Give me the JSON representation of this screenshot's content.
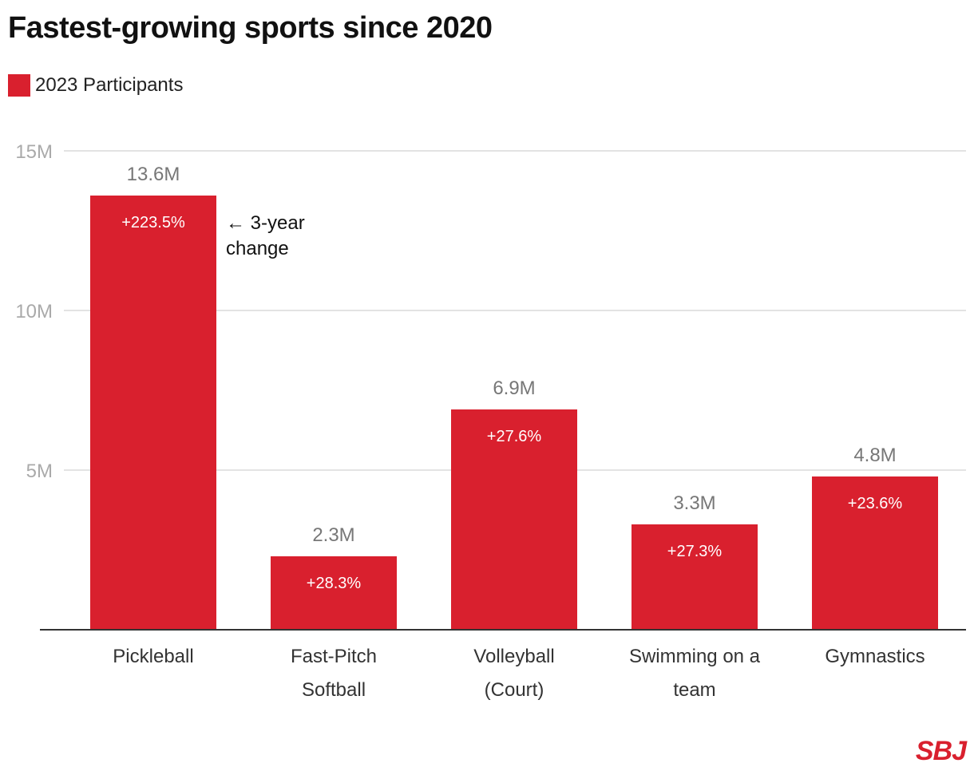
{
  "chart_data": {
    "type": "bar",
    "title": "Fastest-growing sports since 2020",
    "legend": {
      "label": "2023 Participants",
      "position": "top-left"
    },
    "categories": [
      [
        "Pickleball"
      ],
      [
        "Fast-Pitch",
        "Softball"
      ],
      [
        "Volleyball",
        "(Court)"
      ],
      [
        "Swimming on a",
        "team"
      ],
      [
        "Gymnastics"
      ]
    ],
    "values": [
      13.6,
      2.3,
      6.9,
      3.3,
      4.8
    ],
    "value_labels": [
      "13.6M",
      "2.3M",
      "6.9M",
      "3.3M",
      "4.8M"
    ],
    "change_labels": [
      "+223.5%",
      "+28.3%",
      "+27.6%",
      "+27.3%",
      "+23.6%"
    ],
    "annotation": [
      "← 3-year",
      "change"
    ],
    "yticks": [
      {
        "value": 5,
        "label": "5M"
      },
      {
        "value": 10,
        "label": "10M"
      },
      {
        "value": 15,
        "label": "15M"
      }
    ],
    "ylim": [
      0,
      15
    ],
    "ylabel": "",
    "xlabel": "",
    "grid": true,
    "colors": {
      "bar": "#d9202e",
      "value_label": "#777777",
      "tick_label": "#aaaaaa",
      "grid": "#e3e3e3"
    }
  },
  "branding": {
    "logo_text": "SBJ"
  }
}
